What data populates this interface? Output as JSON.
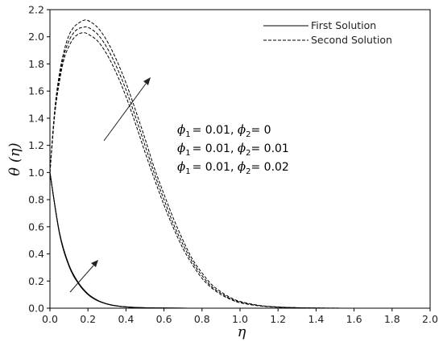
{
  "chart_data": {
    "type": "line",
    "xlabel": "η",
    "ylabel": "θ (η)",
    "xlim": [
      0,
      2.0
    ],
    "ylim": [
      0,
      2.2
    ],
    "xticks": [
      "0.0",
      "0.2",
      "0.4",
      "0.6",
      "0.8",
      "1.0",
      "1.2",
      "1.4",
      "1.6",
      "1.8",
      "2.0"
    ],
    "yticks": [
      "0.0",
      "0.2",
      "0.4",
      "0.6",
      "0.8",
      "1.0",
      "1.2",
      "1.4",
      "1.6",
      "1.8",
      "2.0",
      "2.2"
    ],
    "grid": false,
    "legend": {
      "position": "top-right",
      "entries": [
        {
          "label": "First Solution",
          "style": "solid"
        },
        {
          "label": "Second Solution",
          "style": "dashed"
        }
      ]
    },
    "annotations": [
      {
        "phi1": "0.01",
        "phi2": "0"
      },
      {
        "phi1": "0.01",
        "phi2": "0.01"
      },
      {
        "phi1": "0.01",
        "phi2": "0.02"
      }
    ],
    "series": [
      {
        "style": "solid",
        "x": [
          0,
          0.05,
          0.1,
          0.15,
          0.2,
          0.25,
          0.3,
          0.35,
          0.4,
          0.45,
          0.5,
          0.6,
          0.8,
          1.0,
          2.0
        ],
        "y": [
          1.0,
          0.55,
          0.31,
          0.18,
          0.1,
          0.055,
          0.03,
          0.016,
          0.009,
          0.005,
          0.003,
          0.001,
          0.0,
          0.0,
          0.0
        ]
      },
      {
        "style": "solid",
        "x": [
          0,
          0.05,
          0.1,
          0.15,
          0.2,
          0.25,
          0.3,
          0.35,
          0.4,
          0.45,
          0.5,
          0.6,
          0.8,
          1.0,
          2.0
        ],
        "y": [
          1.0,
          0.555,
          0.315,
          0.184,
          0.103,
          0.057,
          0.031,
          0.017,
          0.0095,
          0.0053,
          0.0032,
          0.0011,
          0.0,
          0.0,
          0.0
        ]
      },
      {
        "style": "solid",
        "x": [
          0,
          0.05,
          0.1,
          0.15,
          0.2,
          0.25,
          0.3,
          0.35,
          0.4,
          0.45,
          0.5,
          0.6,
          0.8,
          1.0,
          2.0
        ],
        "y": [
          1.0,
          0.56,
          0.32,
          0.188,
          0.106,
          0.059,
          0.032,
          0.018,
          0.01,
          0.0056,
          0.0034,
          0.0012,
          0.0,
          0.0,
          0.0
        ]
      },
      {
        "style": "dashed",
        "x": [
          0,
          0.025,
          0.05,
          0.075,
          0.1,
          0.125,
          0.15,
          0.175,
          0.2,
          0.25,
          0.3,
          0.35,
          0.4,
          0.45,
          0.5,
          0.55,
          0.6,
          0.65,
          0.7,
          0.75,
          0.8,
          0.85,
          0.9,
          0.95,
          1.0,
          1.1,
          1.2,
          1.3,
          1.4,
          1.5,
          1.6,
          2.0
        ],
        "y": [
          1.0,
          1.42,
          1.67,
          1.84,
          1.93,
          1.99,
          2.02,
          2.03,
          2.02,
          1.97,
          1.87,
          1.73,
          1.56,
          1.36,
          1.15,
          0.95,
          0.76,
          0.59,
          0.44,
          0.32,
          0.22,
          0.15,
          0.1,
          0.065,
          0.04,
          0.017,
          0.007,
          0.003,
          0.001,
          0.0,
          0.0,
          0.0
        ]
      },
      {
        "style": "dashed",
        "x": [
          0,
          0.025,
          0.05,
          0.075,
          0.1,
          0.125,
          0.15,
          0.175,
          0.2,
          0.25,
          0.3,
          0.35,
          0.4,
          0.45,
          0.5,
          0.55,
          0.6,
          0.65,
          0.7,
          0.75,
          0.8,
          0.85,
          0.9,
          0.95,
          1.0,
          1.1,
          1.2,
          1.3,
          1.4,
          1.5,
          1.6,
          2.0
        ],
        "y": [
          1.0,
          1.44,
          1.7,
          1.87,
          1.97,
          2.03,
          2.06,
          2.07,
          2.07,
          2.02,
          1.92,
          1.78,
          1.61,
          1.41,
          1.2,
          0.99,
          0.8,
          0.62,
          0.47,
          0.34,
          0.24,
          0.16,
          0.11,
          0.07,
          0.045,
          0.019,
          0.008,
          0.0035,
          0.0015,
          0.0005,
          0.0,
          0.0
        ]
      },
      {
        "style": "dashed",
        "x": [
          0,
          0.025,
          0.05,
          0.075,
          0.1,
          0.125,
          0.15,
          0.175,
          0.2,
          0.25,
          0.3,
          0.35,
          0.4,
          0.45,
          0.5,
          0.55,
          0.6,
          0.65,
          0.7,
          0.75,
          0.8,
          0.85,
          0.9,
          0.95,
          1.0,
          1.1,
          1.2,
          1.3,
          1.4,
          1.5,
          1.6,
          2.0
        ],
        "y": [
          1.0,
          1.46,
          1.73,
          1.9,
          2.01,
          2.07,
          2.1,
          2.12,
          2.12,
          2.07,
          1.97,
          1.83,
          1.66,
          1.46,
          1.25,
          1.03,
          0.84,
          0.66,
          0.5,
          0.36,
          0.26,
          0.175,
          0.12,
          0.078,
          0.05,
          0.021,
          0.009,
          0.004,
          0.0017,
          0.0006,
          0.0,
          0.0
        ]
      }
    ]
  }
}
